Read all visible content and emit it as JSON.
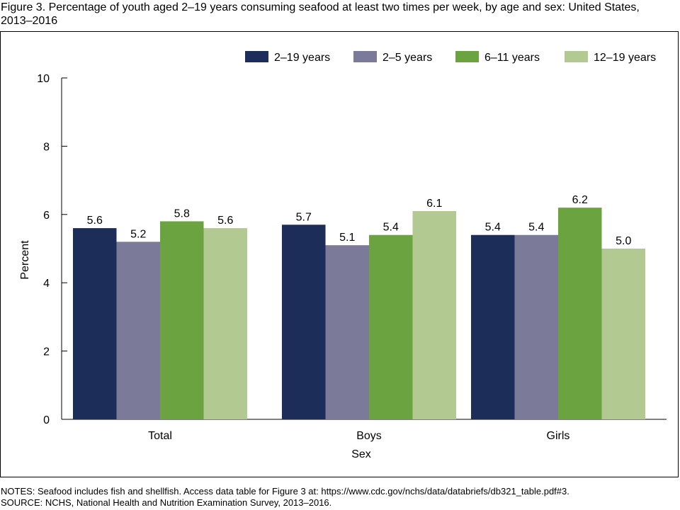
{
  "figure": {
    "title": "Figure 3. Percentage of youth aged 2–19 years consuming seafood at least two times per week, by age and sex: United States, 2013–2016"
  },
  "colors": {
    "2-19": "#1d2d5a",
    "2-5": "#7b7b99",
    "6-11": "#6ba341",
    "12-19": "#b2c991"
  },
  "chart_data": {
    "type": "bar",
    "title": "",
    "xlabel": "Sex",
    "ylabel": "Percent",
    "ylim": [
      0,
      10
    ],
    "yticks": [
      "0",
      "2",
      "4",
      "6",
      "8",
      "10"
    ],
    "legend_position": "top-right",
    "categories": [
      "Total",
      "Boys",
      "Girls"
    ],
    "series": [
      {
        "name": "2–19 years",
        "color": "#1d2d5a",
        "values": [
          5.6,
          5.7,
          5.4
        ],
        "labels": [
          "5.6",
          "5.7",
          "5.4"
        ]
      },
      {
        "name": "2–5 years",
        "color": "#7b7b99",
        "values": [
          5.2,
          5.1,
          5.4
        ],
        "labels": [
          "5.2",
          "5.1",
          "5.4"
        ]
      },
      {
        "name": "6–11 years",
        "color": "#6ba341",
        "values": [
          5.8,
          5.4,
          6.2
        ],
        "labels": [
          "5.8",
          "5.4",
          "6.2"
        ]
      },
      {
        "name": "12–19 years",
        "color": "#b2c991",
        "values": [
          5.6,
          6.1,
          5.0
        ],
        "labels": [
          "5.6",
          "6.1",
          "5.0"
        ]
      }
    ]
  },
  "notes": {
    "notes_line": "NOTES: Seafood includes fish and shellfish. Access data table for Figure 3 at: https://www.cdc.gov/nchs/data/databriefs/db321_table.pdf#3.",
    "source_line": "SOURCE: NCHS, National Health and Nutrition Examination Survey, 2013–2016."
  }
}
